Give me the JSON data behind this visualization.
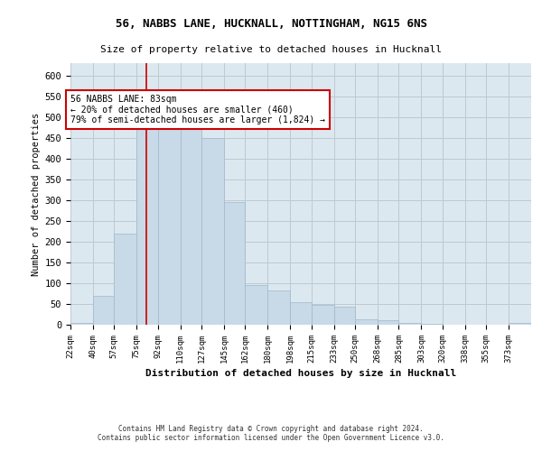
{
  "title1": "56, NABBS LANE, HUCKNALL, NOTTINGHAM, NG15 6NS",
  "title2": "Size of property relative to detached houses in Hucknall",
  "xlabel": "Distribution of detached houses by size in Hucknall",
  "ylabel": "Number of detached properties",
  "footnote": "Contains HM Land Registry data © Crown copyright and database right 2024.\nContains public sector information licensed under the Open Government Licence v3.0.",
  "bin_labels": [
    "22sqm",
    "40sqm",
    "57sqm",
    "75sqm",
    "92sqm",
    "110sqm",
    "127sqm",
    "145sqm",
    "162sqm",
    "180sqm",
    "198sqm",
    "215sqm",
    "233sqm",
    "250sqm",
    "268sqm",
    "285sqm",
    "303sqm",
    "320sqm",
    "338sqm",
    "355sqm",
    "373sqm"
  ],
  "bar_values": [
    5,
    70,
    220,
    475,
    477,
    480,
    450,
    295,
    96,
    82,
    54,
    47,
    43,
    12,
    10,
    5,
    3,
    0,
    0,
    0,
    5
  ],
  "bar_color": "#c8d9e8",
  "bar_edge_color": "#a0b8cc",
  "vline_x": 83,
  "vline_color": "#cc0000",
  "annotation_text": "56 NABBS LANE: 83sqm\n← 20% of detached houses are smaller (460)\n79% of semi-detached houses are larger (1,824) →",
  "annotation_box_color": "#ffffff",
  "annotation_box_edge_color": "#cc0000",
  "ylim": [
    0,
    630
  ],
  "yticks": [
    0,
    50,
    100,
    150,
    200,
    250,
    300,
    350,
    400,
    450,
    500,
    550,
    600
  ],
  "bin_edges": [
    22,
    40,
    57,
    75,
    92,
    110,
    127,
    145,
    162,
    180,
    198,
    215,
    233,
    250,
    268,
    285,
    303,
    320,
    338,
    355,
    373,
    391
  ],
  "grid_color": "#c0c8d0",
  "background_color": "#dce8f0"
}
